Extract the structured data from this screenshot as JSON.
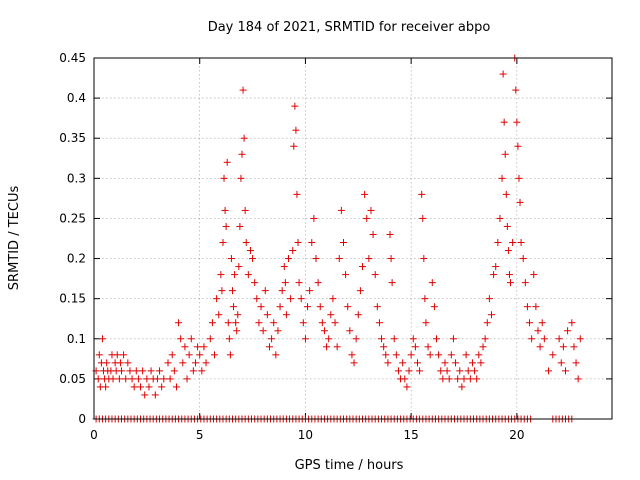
{
  "chart_data": {
    "type": "scatter",
    "title": "Day 184 of 2021, SRMTID for receiver abpo",
    "xlabel": "GPS time / hours",
    "ylabel": "SRMTID / TECUs",
    "xlim": [
      0,
      24.5
    ],
    "ylim": [
      0,
      0.45
    ],
    "x_ticks": [
      0,
      5,
      10,
      15,
      20
    ],
    "x_tick_labels": [
      "0",
      "5",
      "10",
      "15",
      "20"
    ],
    "y_ticks": [
      0,
      0.05,
      0.1,
      0.15,
      0.2,
      0.25,
      0.3,
      0.35,
      0.4,
      0.45
    ],
    "y_tick_labels": [
      "0",
      "0.05",
      "0.1",
      "0.15",
      "0.2",
      "0.25",
      "0.3",
      "0.35",
      "0.4",
      "0.45"
    ],
    "grid": true,
    "marker": "+",
    "color": "#e00000",
    "series": [
      {
        "name": "SRMTID",
        "points": [
          [
            0.1,
            0.06
          ],
          [
            0.2,
            0.05
          ],
          [
            0.25,
            0.08
          ],
          [
            0.3,
            0.04
          ],
          [
            0.35,
            0.07
          ],
          [
            0.4,
            0.1
          ],
          [
            0.45,
            0.06
          ],
          [
            0.5,
            0.05
          ],
          [
            0.55,
            0.04
          ],
          [
            0.6,
            0.07
          ],
          [
            0.65,
            0.06
          ],
          [
            0.7,
            0.05
          ],
          [
            0.8,
            0.06
          ],
          [
            0.85,
            0.08
          ],
          [
            0.9,
            0.05
          ],
          [
            1.0,
            0.07
          ],
          [
            1.05,
            0.06
          ],
          [
            1.1,
            0.08
          ],
          [
            1.2,
            0.05
          ],
          [
            1.25,
            0.07
          ],
          [
            1.3,
            0.06
          ],
          [
            1.4,
            0.08
          ],
          [
            1.5,
            0.05
          ],
          [
            1.6,
            0.07
          ],
          [
            1.7,
            0.06
          ],
          [
            1.8,
            0.05
          ],
          [
            1.9,
            0.04
          ],
          [
            2.0,
            0.06
          ],
          [
            2.1,
            0.05
          ],
          [
            2.2,
            0.04
          ],
          [
            2.3,
            0.06
          ],
          [
            2.4,
            0.03
          ],
          [
            2.5,
            0.05
          ],
          [
            2.6,
            0.04
          ],
          [
            2.7,
            0.06
          ],
          [
            2.8,
            0.05
          ],
          [
            2.9,
            0.03
          ],
          [
            3.0,
            0.05
          ],
          [
            3.1,
            0.06
          ],
          [
            3.2,
            0.04
          ],
          [
            3.3,
            0.05
          ],
          [
            3.5,
            0.07
          ],
          [
            3.6,
            0.05
          ],
          [
            3.7,
            0.08
          ],
          [
            3.8,
            0.06
          ],
          [
            3.9,
            0.04
          ],
          [
            4.0,
            0.12
          ],
          [
            4.1,
            0.1
          ],
          [
            4.2,
            0.07
          ],
          [
            4.3,
            0.09
          ],
          [
            4.4,
            0.05
          ],
          [
            4.5,
            0.08
          ],
          [
            4.6,
            0.1
          ],
          [
            4.7,
            0.06
          ],
          [
            4.8,
            0.07
          ],
          [
            4.9,
            0.09
          ],
          [
            5.0,
            0.08
          ],
          [
            5.1,
            0.06
          ],
          [
            5.2,
            0.09
          ],
          [
            5.3,
            0.07
          ],
          [
            5.5,
            0.1
          ],
          [
            5.6,
            0.12
          ],
          [
            5.7,
            0.08
          ],
          [
            5.8,
            0.15
          ],
          [
            5.9,
            0.13
          ],
          [
            6.0,
            0.18
          ],
          [
            6.05,
            0.16
          ],
          [
            6.1,
            0.22
          ],
          [
            6.15,
            0.3
          ],
          [
            6.2,
            0.26
          ],
          [
            6.25,
            0.24
          ],
          [
            6.3,
            0.32
          ],
          [
            6.35,
            0.12
          ],
          [
            6.4,
            0.1
          ],
          [
            6.45,
            0.08
          ],
          [
            6.5,
            0.2
          ],
          [
            6.55,
            0.16
          ],
          [
            6.6,
            0.14
          ],
          [
            6.65,
            0.18
          ],
          [
            6.7,
            0.12
          ],
          [
            6.75,
            0.11
          ],
          [
            6.8,
            0.13
          ],
          [
            6.85,
            0.19
          ],
          [
            6.9,
            0.24
          ],
          [
            6.95,
            0.3
          ],
          [
            7.0,
            0.33
          ],
          [
            7.05,
            0.41
          ],
          [
            7.1,
            0.35
          ],
          [
            7.15,
            0.26
          ],
          [
            7.2,
            0.22
          ],
          [
            7.3,
            0.18
          ],
          [
            7.4,
            0.21
          ],
          [
            7.5,
            0.2
          ],
          [
            7.6,
            0.17
          ],
          [
            7.7,
            0.15
          ],
          [
            7.8,
            0.12
          ],
          [
            7.9,
            0.14
          ],
          [
            8.0,
            0.11
          ],
          [
            8.1,
            0.16
          ],
          [
            8.2,
            0.13
          ],
          [
            8.3,
            0.09
          ],
          [
            8.4,
            0.1
          ],
          [
            8.5,
            0.12
          ],
          [
            8.6,
            0.08
          ],
          [
            8.7,
            0.11
          ],
          [
            8.8,
            0.14
          ],
          [
            8.9,
            0.16
          ],
          [
            9.0,
            0.19
          ],
          [
            9.05,
            0.17
          ],
          [
            9.1,
            0.13
          ],
          [
            9.2,
            0.2
          ],
          [
            9.3,
            0.15
          ],
          [
            9.4,
            0.21
          ],
          [
            9.45,
            0.34
          ],
          [
            9.5,
            0.39
          ],
          [
            9.55,
            0.36
          ],
          [
            9.6,
            0.28
          ],
          [
            9.65,
            0.22
          ],
          [
            9.7,
            0.17
          ],
          [
            9.8,
            0.15
          ],
          [
            9.9,
            0.12
          ],
          [
            10.0,
            0.1
          ],
          [
            10.1,
            0.14
          ],
          [
            10.2,
            0.16
          ],
          [
            10.3,
            0.22
          ],
          [
            10.4,
            0.25
          ],
          [
            10.5,
            0.2
          ],
          [
            10.6,
            0.17
          ],
          [
            10.7,
            0.14
          ],
          [
            10.8,
            0.12
          ],
          [
            10.9,
            0.11
          ],
          [
            11.0,
            0.09
          ],
          [
            11.1,
            0.1
          ],
          [
            11.2,
            0.13
          ],
          [
            11.3,
            0.15
          ],
          [
            11.4,
            0.12
          ],
          [
            11.5,
            0.09
          ],
          [
            11.6,
            0.2
          ],
          [
            11.7,
            0.26
          ],
          [
            11.8,
            0.22
          ],
          [
            11.9,
            0.18
          ],
          [
            12.0,
            0.14
          ],
          [
            12.1,
            0.11
          ],
          [
            12.2,
            0.08
          ],
          [
            12.3,
            0.07
          ],
          [
            12.4,
            0.1
          ],
          [
            12.5,
            0.13
          ],
          [
            12.6,
            0.16
          ],
          [
            12.7,
            0.19
          ],
          [
            12.8,
            0.28
          ],
          [
            12.9,
            0.25
          ],
          [
            13.0,
            0.2
          ],
          [
            13.1,
            0.26
          ],
          [
            13.2,
            0.23
          ],
          [
            13.3,
            0.18
          ],
          [
            13.4,
            0.14
          ],
          [
            13.5,
            0.12
          ],
          [
            13.6,
            0.1
          ],
          [
            13.7,
            0.09
          ],
          [
            13.8,
            0.08
          ],
          [
            13.9,
            0.07
          ],
          [
            14.0,
            0.23
          ],
          [
            14.05,
            0.2
          ],
          [
            14.1,
            0.17
          ],
          [
            14.2,
            0.1
          ],
          [
            14.3,
            0.08
          ],
          [
            14.4,
            0.06
          ],
          [
            14.5,
            0.05
          ],
          [
            14.6,
            0.07
          ],
          [
            14.7,
            0.05
          ],
          [
            14.8,
            0.04
          ],
          [
            14.9,
            0.06
          ],
          [
            15.0,
            0.08
          ],
          [
            15.1,
            0.1
          ],
          [
            15.2,
            0.09
          ],
          [
            15.3,
            0.07
          ],
          [
            15.4,
            0.06
          ],
          [
            15.5,
            0.28
          ],
          [
            15.55,
            0.25
          ],
          [
            15.6,
            0.2
          ],
          [
            15.65,
            0.15
          ],
          [
            15.7,
            0.12
          ],
          [
            15.8,
            0.09
          ],
          [
            15.9,
            0.08
          ],
          [
            16.0,
            0.17
          ],
          [
            16.1,
            0.14
          ],
          [
            16.2,
            0.1
          ],
          [
            16.3,
            0.08
          ],
          [
            16.4,
            0.06
          ],
          [
            16.5,
            0.05
          ],
          [
            16.6,
            0.07
          ],
          [
            16.7,
            0.06
          ],
          [
            16.8,
            0.05
          ],
          [
            16.9,
            0.08
          ],
          [
            17.0,
            0.1
          ],
          [
            17.1,
            0.07
          ],
          [
            17.2,
            0.05
          ],
          [
            17.3,
            0.06
          ],
          [
            17.4,
            0.04
          ],
          [
            17.5,
            0.05
          ],
          [
            17.6,
            0.08
          ],
          [
            17.7,
            0.06
          ],
          [
            17.8,
            0.05
          ],
          [
            17.9,
            0.07
          ],
          [
            18.0,
            0.06
          ],
          [
            18.1,
            0.05
          ],
          [
            18.2,
            0.08
          ],
          [
            18.3,
            0.07
          ],
          [
            18.4,
            0.09
          ],
          [
            18.5,
            0.1
          ],
          [
            18.6,
            0.12
          ],
          [
            18.7,
            0.15
          ],
          [
            18.8,
            0.13
          ],
          [
            18.9,
            0.18
          ],
          [
            19.0,
            0.19
          ],
          [
            19.1,
            0.22
          ],
          [
            19.2,
            0.25
          ],
          [
            19.3,
            0.3
          ],
          [
            19.35,
            0.43
          ],
          [
            19.4,
            0.37
          ],
          [
            19.45,
            0.33
          ],
          [
            19.5,
            0.28
          ],
          [
            19.55,
            0.24
          ],
          [
            19.6,
            0.21
          ],
          [
            19.65,
            0.18
          ],
          [
            19.7,
            0.17
          ],
          [
            19.8,
            0.22
          ],
          [
            19.9,
            0.45
          ],
          [
            19.95,
            0.41
          ],
          [
            20.0,
            0.37
          ],
          [
            20.05,
            0.34
          ],
          [
            20.1,
            0.3
          ],
          [
            20.15,
            0.27
          ],
          [
            20.2,
            0.22
          ],
          [
            20.3,
            0.2
          ],
          [
            20.4,
            0.17
          ],
          [
            20.5,
            0.14
          ],
          [
            20.6,
            0.12
          ],
          [
            20.7,
            0.1
          ],
          [
            20.8,
            0.18
          ],
          [
            20.9,
            0.14
          ],
          [
            21.0,
            0.11
          ],
          [
            21.1,
            0.09
          ],
          [
            21.2,
            0.12
          ],
          [
            21.3,
            0.1
          ],
          [
            21.5,
            0.06
          ],
          [
            21.7,
            0.08
          ],
          [
            22.0,
            0.1
          ],
          [
            22.1,
            0.07
          ],
          [
            22.2,
            0.09
          ],
          [
            22.3,
            0.06
          ],
          [
            22.4,
            0.11
          ],
          [
            22.6,
            0.12
          ],
          [
            22.7,
            0.09
          ],
          [
            22.8,
            0.07
          ],
          [
            22.9,
            0.05
          ],
          [
            23.0,
            0.1
          ]
        ]
      }
    ],
    "zero_markers_x": [
      0.1,
      0.25,
      0.4,
      0.55,
      0.7,
      0.85,
      1.0,
      1.15,
      1.3,
      1.45,
      1.6,
      1.75,
      1.9,
      2.05,
      2.2,
      2.35,
      2.5,
      2.65,
      2.8,
      2.95,
      3.1,
      3.25,
      3.4,
      3.55,
      3.7,
      3.85,
      4.0,
      4.15,
      4.3,
      4.45,
      4.6,
      4.75,
      4.9,
      5.05,
      5.2,
      5.35,
      5.5,
      5.65,
      5.8,
      5.95,
      6.1,
      6.25,
      6.4,
      6.55,
      6.7,
      6.85,
      7.0,
      7.15,
      7.3,
      7.45,
      7.6,
      7.75,
      7.9,
      8.05,
      8.2,
      8.35,
      8.5,
      8.65,
      8.8,
      8.95,
      9.1,
      9.25,
      9.4,
      9.55,
      9.7,
      9.85,
      10.0,
      10.15,
      10.3,
      10.45,
      10.6,
      10.75,
      10.9,
      11.05,
      11.2,
      11.35,
      11.5,
      11.65,
      11.8,
      11.95,
      12.1,
      12.25,
      12.4,
      12.55,
      12.7,
      12.85,
      13.0,
      13.15,
      13.3,
      13.45,
      13.6,
      13.75,
      13.9,
      14.05,
      14.2,
      14.35,
      14.5,
      14.65,
      14.8,
      14.95,
      15.1,
      15.25,
      15.4,
      15.55,
      15.7,
      15.85,
      16.0,
      16.15,
      16.3,
      16.45,
      16.6,
      16.75,
      16.9,
      17.05,
      17.2,
      17.35,
      17.5,
      17.65,
      17.8,
      17.95,
      18.1,
      18.25,
      18.4,
      18.55,
      18.7,
      18.85,
      19.0,
      19.15,
      19.3,
      19.45,
      19.6,
      19.75,
      19.9,
      20.05,
      20.2,
      20.35,
      20.5,
      20.65,
      21.7,
      21.85,
      22.0,
      22.15,
      22.3,
      22.45,
      22.6
    ]
  }
}
